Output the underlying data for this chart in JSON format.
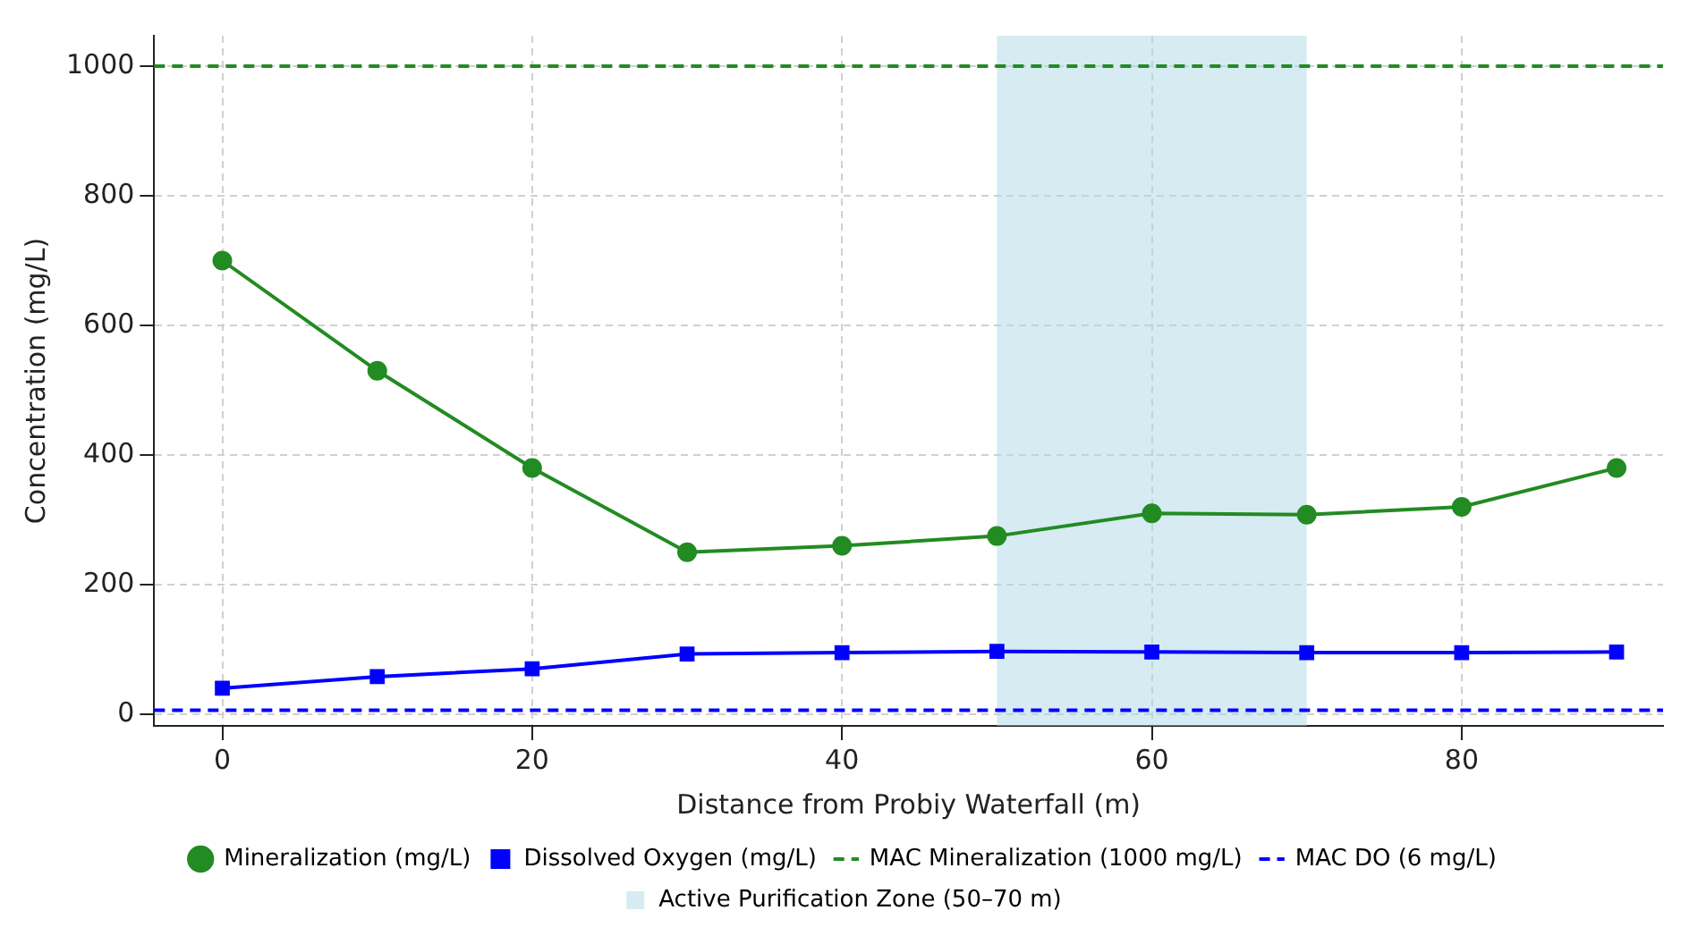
{
  "chart_data": {
    "type": "line",
    "xlabel": "Distance from Probiy Waterfall (m)",
    "ylabel": "Concentration (mg/L)",
    "x": [
      0,
      10,
      20,
      30,
      40,
      50,
      60,
      70,
      80,
      90
    ],
    "series": [
      {
        "name": "Mineralization (mg/L)",
        "color": "#228b22",
        "marker": "circle",
        "values": [
          700,
          530,
          380,
          250,
          260,
          275,
          310,
          308,
          320,
          380
        ]
      },
      {
        "name": "Dissolved Oxygen (mg/L)",
        "color": "#0000ff",
        "marker": "square",
        "values": [
          40,
          58,
          70,
          93,
          95,
          97,
          96,
          95,
          95,
          96
        ]
      }
    ],
    "ref_lines": [
      {
        "axis": "y",
        "value": 1000,
        "label": "MAC Mineralization (1000 mg/L)",
        "color": "#228b22",
        "line_style": "dashed"
      },
      {
        "axis": "y",
        "value": 6,
        "label": "MAC DO (6 mg/L)",
        "color": "#0000ff",
        "line_style": "dashed"
      }
    ],
    "bands": [
      {
        "axis": "x",
        "from": 50,
        "to": 70,
        "label": "Active Purification Zone (50–70 m)",
        "color": "#add8e6"
      }
    ],
    "xlim": [
      -4.4,
      93
    ],
    "ylim": [
      -18,
      1047
    ],
    "xticks": [
      0,
      20,
      40,
      60,
      80
    ],
    "yticks": [
      0,
      200,
      400,
      600,
      800,
      1000
    ],
    "grid": true,
    "legend": "bottom",
    "line_style": "solid"
  }
}
